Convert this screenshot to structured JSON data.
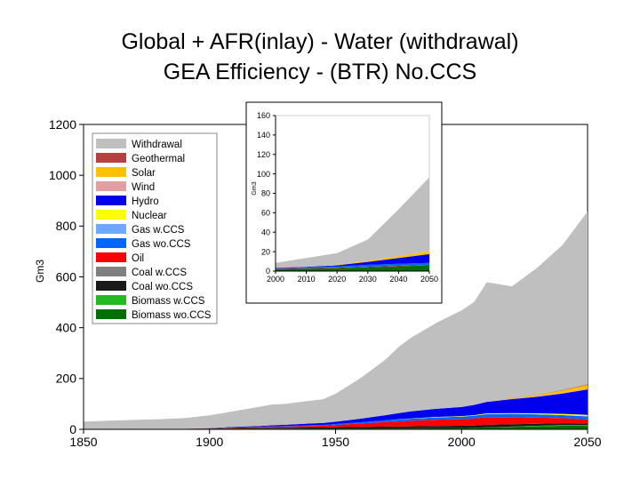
{
  "title_line1": "Global + AFR(inlay) - Water (withdrawal)",
  "title_line2": "GEA Efficiency - (BTR) No.CCS",
  "chart_data": [
    {
      "type": "area",
      "stacked": true,
      "ylabel": "Gm3",
      "xlim": [
        1850,
        2050
      ],
      "ylim": [
        0,
        1200
      ],
      "x_ticks": [
        1850,
        1900,
        1950,
        2000,
        2050
      ],
      "y_ticks": [
        0,
        200,
        400,
        600,
        800,
        1000,
        1200
      ],
      "legend_position": "top-left",
      "x": [
        1850,
        1860,
        1870,
        1880,
        1890,
        1900,
        1910,
        1920,
        1925,
        1930,
        1940,
        1945,
        1950,
        1960,
        1970,
        1975,
        1980,
        1990,
        2000,
        2005,
        2010,
        2020,
        2030,
        2040,
        2050
      ],
      "series": [
        {
          "name": "Biomass wo.CCS",
          "color": "#007000",
          "values": [
            2,
            2,
            2,
            2,
            2,
            2,
            3,
            3,
            3,
            3,
            3,
            3,
            3,
            3,
            4,
            4,
            4,
            5,
            5,
            6,
            8,
            10,
            12,
            14,
            14
          ]
        },
        {
          "name": "Biomass w.CCS",
          "color": "#22bb22",
          "values": [
            0,
            0,
            0,
            0,
            0,
            0,
            0,
            0,
            0,
            0,
            0,
            0,
            0,
            0,
            0,
            0,
            0,
            0,
            0,
            0,
            0,
            1,
            2,
            3,
            3
          ]
        },
        {
          "name": "Coal wo.CCS",
          "color": "#1a1a1a",
          "values": [
            0,
            0,
            0,
            0,
            0,
            1,
            2,
            3,
            3,
            3,
            4,
            4,
            5,
            6,
            7,
            7,
            8,
            8,
            9,
            9,
            10,
            9,
            8,
            7,
            6
          ]
        },
        {
          "name": "Coal w.CCS",
          "color": "#808080",
          "values": [
            0,
            0,
            0,
            0,
            0,
            0,
            0,
            0,
            0,
            0,
            0,
            0,
            0,
            0,
            0,
            0,
            0,
            0,
            0,
            0,
            0,
            0,
            0,
            0,
            0
          ]
        },
        {
          "name": "Oil",
          "color": "#ff0000",
          "values": [
            0,
            0,
            0,
            0,
            0,
            1,
            2,
            3,
            4,
            5,
            6,
            7,
            9,
            14,
            18,
            20,
            22,
            25,
            26,
            28,
            30,
            28,
            24,
            20,
            16
          ]
        },
        {
          "name": "Gas wo.CCS",
          "color": "#0066ff",
          "values": [
            0,
            0,
            0,
            0,
            0,
            0,
            1,
            1,
            2,
            2,
            3,
            3,
            4,
            5,
            7,
            8,
            8,
            9,
            10,
            11,
            12,
            13,
            13,
            12,
            12
          ]
        },
        {
          "name": "Gas w.CCS",
          "color": "#6fa8ff",
          "values": [
            0,
            0,
            0,
            0,
            0,
            0,
            0,
            0,
            0,
            0,
            0,
            0,
            0,
            0,
            0,
            0,
            0,
            0,
            0,
            0,
            0,
            0,
            0,
            0,
            0
          ]
        },
        {
          "name": "Nuclear",
          "color": "#ffff00",
          "values": [
            0,
            0,
            0,
            0,
            0,
            0,
            0,
            0,
            0,
            0,
            0,
            0,
            0,
            0,
            0,
            1,
            1,
            2,
            2,
            2,
            3,
            3,
            4,
            5,
            6
          ]
        },
        {
          "name": "Hydro",
          "color": "#0000ee",
          "values": [
            0,
            0,
            0,
            0,
            0,
            1,
            2,
            3,
            4,
            5,
            7,
            8,
            9,
            14,
            20,
            24,
            28,
            32,
            36,
            40,
            45,
            55,
            65,
            80,
            100
          ]
        },
        {
          "name": "Wind",
          "color": "#e0a0a0",
          "values": [
            0,
            0,
            0,
            0,
            0,
            0,
            0,
            0,
            0,
            0,
            0,
            0,
            0,
            0,
            0,
            0,
            0,
            0,
            0,
            0,
            1,
            1,
            2,
            2,
            3
          ]
        },
        {
          "name": "Solar",
          "color": "#ffc000",
          "values": [
            0,
            0,
            0,
            0,
            0,
            0,
            0,
            0,
            0,
            0,
            0,
            0,
            0,
            0,
            0,
            0,
            0,
            0,
            0,
            0,
            0,
            2,
            5,
            10,
            15
          ]
        },
        {
          "name": "Geothermal",
          "color": "#b84040",
          "values": [
            0,
            0,
            0,
            0,
            0,
            0,
            0,
            0,
            0,
            0,
            0,
            0,
            0,
            0,
            0,
            0,
            0,
            0,
            0,
            0,
            0,
            1,
            1,
            2,
            2
          ]
        },
        {
          "name": "Withdrawal",
          "color": "#bfbfbf",
          "values": [
            28,
            32,
            35,
            38,
            42,
            50,
            62,
            76,
            82,
            82,
            90,
            93,
            110,
            160,
            220,
            260,
            290,
            338,
            380,
            405,
            470,
            440,
            500,
            570,
            680
          ]
        }
      ]
    },
    {
      "type": "area",
      "stacked": true,
      "inset": true,
      "ylabel": "Gm3",
      "xlim": [
        2000,
        2050
      ],
      "ylim": [
        0,
        160
      ],
      "x_ticks": [
        2000,
        2010,
        2020,
        2030,
        2040,
        2050
      ],
      "y_ticks": [
        0,
        20,
        40,
        60,
        80,
        100,
        120,
        140,
        160
      ],
      "x": [
        2000,
        2010,
        2020,
        2030,
        2040,
        2050
      ],
      "series": [
        {
          "name": "Biomass wo.CCS",
          "color": "#007000",
          "values": [
            2,
            2.5,
            3,
            4,
            5,
            6
          ]
        },
        {
          "name": "Oil",
          "color": "#ff0000",
          "values": [
            0.5,
            0.5,
            0.5,
            0.5,
            0.5,
            0.5
          ]
        },
        {
          "name": "Gas wo.CCS",
          "color": "#0066ff",
          "values": [
            1,
            1,
            1.5,
            2,
            2,
            2
          ]
        },
        {
          "name": "Hydro",
          "color": "#0000ee",
          "values": [
            0,
            0.5,
            1,
            3,
            6,
            9
          ]
        },
        {
          "name": "Solar",
          "color": "#ffc000",
          "values": [
            0,
            0,
            0.5,
            1,
            2,
            3
          ]
        },
        {
          "name": "Withdrawal",
          "color": "#bfbfbf",
          "values": [
            5,
            9,
            12,
            22,
            48,
            76
          ]
        }
      ]
    }
  ]
}
